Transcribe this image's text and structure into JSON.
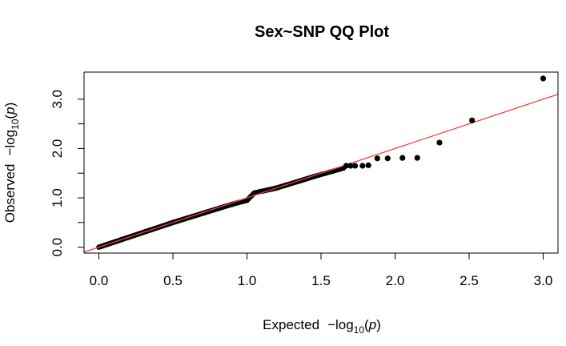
{
  "chart_data": {
    "type": "scatter",
    "title": "Sex~SNP QQ Plot",
    "xlabel": {
      "prefix": "Expected",
      "func": "−log",
      "sub": "10",
      "arg": "p"
    },
    "ylabel": {
      "prefix": "Observed",
      "func": "−log",
      "sub": "10",
      "arg": "p"
    },
    "xlim": [
      -0.1,
      3.1
    ],
    "ylim": [
      -0.12,
      3.55
    ],
    "xticks": [
      0.0,
      0.5,
      1.0,
      1.5,
      2.0,
      2.5,
      3.0
    ],
    "xtick_labels": [
      "0.0",
      "0.5",
      "1.0",
      "1.5",
      "2.0",
      "2.5",
      "3.0"
    ],
    "yticks": [
      0.0,
      0.5,
      1.0,
      1.5,
      2.0,
      2.5,
      3.0
    ],
    "ytick_labels": [
      "0.0",
      "",
      "1.0",
      "",
      "2.0",
      "",
      "3.0"
    ],
    "reference_line": {
      "slope": 1.0,
      "intercept": 0.0,
      "color": "#e8453c"
    },
    "point_color": "#000000",
    "grid": false,
    "dense_segments": [
      {
        "x0": 0.0,
        "x1": 0.5,
        "y0": 0.0,
        "y1": 0.5,
        "n": 55
      },
      {
        "x0": 0.5,
        "x1": 0.9,
        "y0": 0.5,
        "y1": 0.87,
        "n": 40
      },
      {
        "x0": 0.9,
        "x1": 1.0,
        "y0": 0.87,
        "y1": 0.95,
        "n": 10
      },
      {
        "x0": 1.0,
        "x1": 1.05,
        "y0": 0.95,
        "y1": 1.1,
        "n": 6
      },
      {
        "x0": 1.05,
        "x1": 1.2,
        "y0": 1.1,
        "y1": 1.2,
        "n": 14
      },
      {
        "x0": 1.2,
        "x1": 1.45,
        "y0": 1.2,
        "y1": 1.43,
        "n": 20
      },
      {
        "x0": 1.45,
        "x1": 1.65,
        "y0": 1.43,
        "y1": 1.6,
        "n": 12
      }
    ],
    "points": [
      {
        "x": 1.67,
        "y": 1.65
      },
      {
        "x": 1.7,
        "y": 1.65
      },
      {
        "x": 1.73,
        "y": 1.65
      },
      {
        "x": 1.78,
        "y": 1.65
      },
      {
        "x": 1.82,
        "y": 1.66
      },
      {
        "x": 1.88,
        "y": 1.8
      },
      {
        "x": 1.95,
        "y": 1.8
      },
      {
        "x": 2.05,
        "y": 1.81
      },
      {
        "x": 2.15,
        "y": 1.81
      },
      {
        "x": 2.3,
        "y": 2.12
      },
      {
        "x": 2.52,
        "y": 2.57
      },
      {
        "x": 3.0,
        "y": 3.42
      }
    ]
  }
}
